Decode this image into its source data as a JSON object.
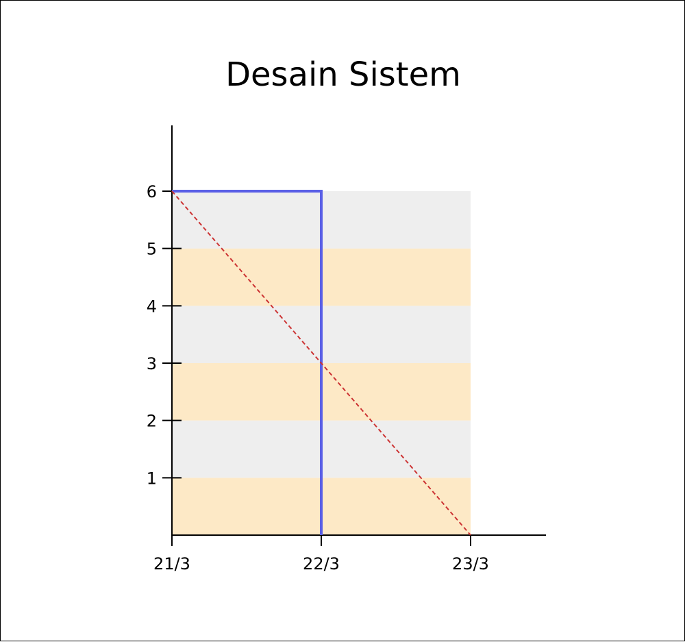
{
  "chart_data": {
    "type": "line",
    "title": "Desain Sistem",
    "xlabel": "",
    "ylabel": "",
    "x_ticks": [
      "21/3",
      "22/3",
      "23/3"
    ],
    "y_ticks": [
      1,
      2,
      3,
      4,
      5,
      6
    ],
    "xlim": [
      "21/3",
      "23/3"
    ],
    "ylim": [
      0,
      6
    ],
    "grid": false,
    "band_colors": [
      "#fde9c6",
      "#eeeeee"
    ],
    "series": [
      {
        "style": "solid",
        "color": "#5a5fe6",
        "points": [
          [
            "21/3",
            6
          ],
          [
            "22/3",
            6
          ],
          [
            "22/3",
            0
          ]
        ]
      },
      {
        "style": "dashed",
        "color": "#cc3333",
        "points": [
          [
            "21/3",
            6
          ],
          [
            "23/3",
            0
          ]
        ]
      }
    ]
  }
}
